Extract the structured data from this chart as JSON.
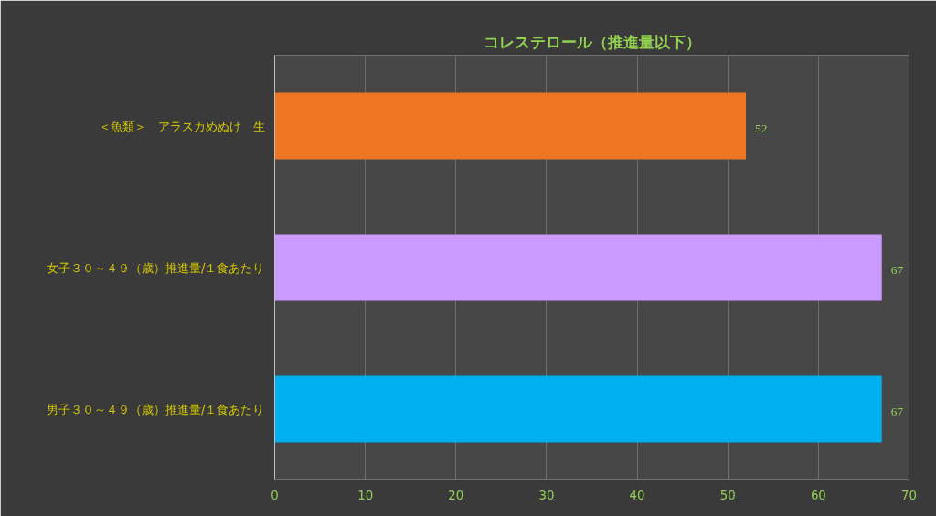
{
  "chart_data": {
    "type": "bar",
    "orientation": "horizontal",
    "title": "コレステロール（推進量以下）",
    "categories": [
      "＜魚類＞　アラスカめぬけ　生",
      "女子３０～４９（歳）推進量/１食あたり",
      "男子３０～４９（歳）推進量/１食あたり"
    ],
    "values": [
      52,
      67,
      67
    ],
    "colors": [
      "#ee7623",
      "#cc99ff",
      "#00b0f0"
    ],
    "xlim": [
      0,
      70
    ],
    "xticks": [
      0,
      10,
      20,
      30,
      40,
      50,
      60,
      70
    ],
    "grid": "x",
    "data_labels": true
  }
}
